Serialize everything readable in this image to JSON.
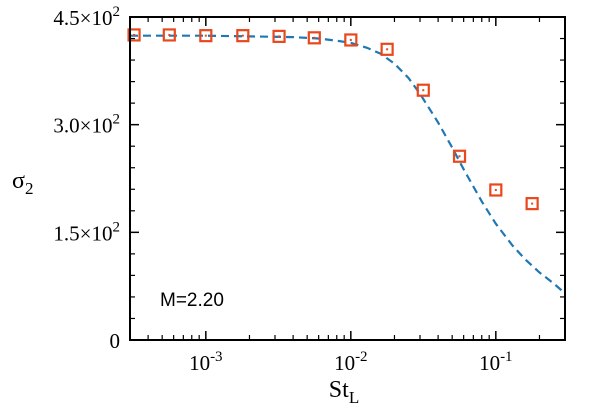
{
  "chart_data": {
    "type": "scatter",
    "xlabel": "St",
    "xlabel_sub": "L",
    "ylabel": "σ",
    "ylabel_sub": "2",
    "xscale": "log",
    "xlim": [
      0.0003,
      0.3
    ],
    "ylim": [
      0,
      450
    ],
    "grid": false,
    "annotation": "M=2.20",
    "x_ticks": [
      {
        "value": 0.001,
        "base": "10",
        "exp": "-3"
      },
      {
        "value": 0.01,
        "base": "10",
        "exp": "-2"
      },
      {
        "value": 0.1,
        "base": "10",
        "exp": "-1"
      }
    ],
    "y_ticks": [
      {
        "value": 0,
        "mant": "0",
        "exp": ""
      },
      {
        "value": 150,
        "mant": "1.5×10",
        "exp": "2"
      },
      {
        "value": 300,
        "mant": "3.0×10",
        "exp": "2"
      },
      {
        "value": 450,
        "mant": "4.5×10",
        "exp": "2"
      }
    ],
    "series": [
      {
        "style": "markers",
        "marker": "square",
        "color": "#e8481c",
        "x": [
          0.00032,
          0.00056,
          0.001,
          0.0018,
          0.0032,
          0.0056,
          0.01,
          0.0178,
          0.0316,
          0.0562,
          0.1,
          0.178
        ],
        "y": [
          425,
          425,
          424,
          424,
          423,
          421,
          418,
          405,
          348,
          256,
          209,
          190
        ]
      },
      {
        "style": "dashed-line",
        "color": "#1f78b4",
        "x": [
          0.0003,
          0.0005,
          0.001,
          0.002,
          0.004,
          0.006,
          0.008,
          0.01,
          0.013,
          0.016,
          0.02,
          0.025,
          0.03,
          0.04,
          0.05,
          0.06,
          0.08,
          0.1,
          0.13,
          0.16,
          0.2,
          0.25,
          0.3
        ],
        "y": [
          424,
          424,
          424,
          423,
          422,
          420,
          417,
          414,
          407,
          399,
          385,
          365,
          343,
          303,
          268,
          238,
          193,
          162,
          132,
          112,
          94,
          79,
          65
        ]
      }
    ]
  }
}
